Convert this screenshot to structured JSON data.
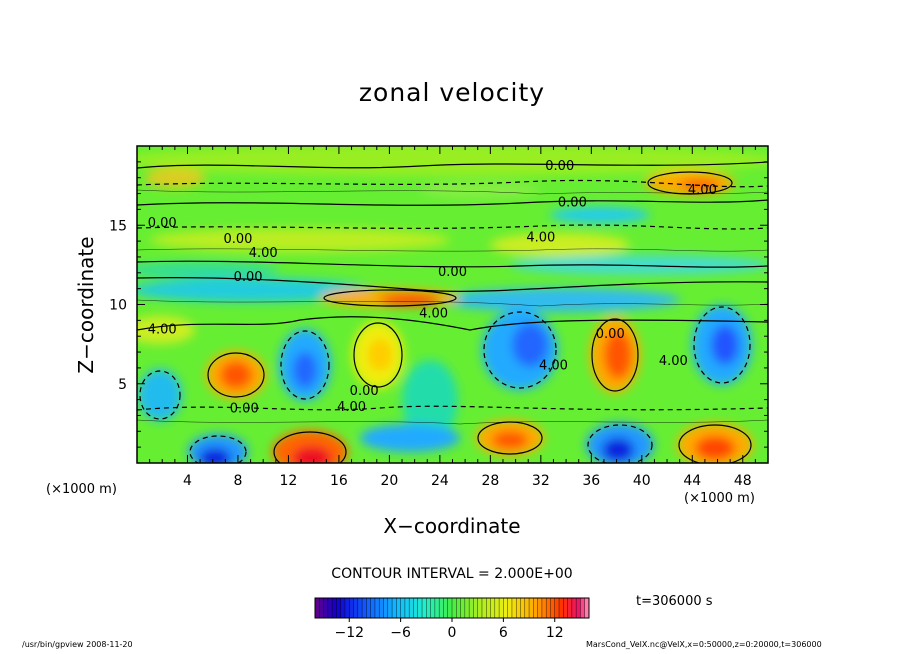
{
  "chart_data": {
    "type": "heatmap",
    "title": "zonal velocity",
    "xlabel": "X−coordinate",
    "ylabel": "Z−coordinate",
    "x_unit_label": "(×1000 m)",
    "xlim": [
      0,
      50
    ],
    "ylim": [
      0,
      20
    ],
    "x_ticks": [
      4,
      8,
      12,
      16,
      20,
      24,
      28,
      32,
      36,
      40,
      44,
      48
    ],
    "y_ticks": [
      5,
      10,
      15
    ],
    "contour_interval_label": "CONTOUR INTERVAL = 2.000E+00",
    "contour_labels": [
      {
        "text": "0.00",
        "x": 33.5,
        "y": 18.8
      },
      {
        "text": "0.00",
        "x": 34.5,
        "y": 16.5
      },
      {
        "text": "4.00",
        "x": 44.8,
        "y": 17.3
      },
      {
        "text": "0.00",
        "x": 2.0,
        "y": 15.2
      },
      {
        "text": "0.00",
        "x": 8.0,
        "y": 14.2
      },
      {
        "text": "4.00",
        "x": 10.0,
        "y": 13.3
      },
      {
        "text": "0.00",
        "x": 8.8,
        "y": 11.8
      },
      {
        "text": "4.00",
        "x": 32.0,
        "y": 14.3
      },
      {
        "text": "0.00",
        "x": 25.0,
        "y": 12.1
      },
      {
        "text": "4.00",
        "x": 23.5,
        "y": 9.5
      },
      {
        "text": "4.00",
        "x": 2.0,
        "y": 8.5
      },
      {
        "text": "0.00",
        "x": 37.5,
        "y": 8.2
      },
      {
        "text": "4.00",
        "x": 33.0,
        "y": 6.2
      },
      {
        "text": "4.00",
        "x": 42.5,
        "y": 6.5
      },
      {
        "text": "0.00",
        "x": 18.0,
        "y": 4.6
      },
      {
        "text": "4.00",
        "x": 17.0,
        "y": 3.6
      },
      {
        "text": "0.00",
        "x": 8.5,
        "y": 3.5
      }
    ],
    "colorbar": {
      "range": [
        -16,
        16
      ],
      "tick_labels": [
        "−12",
        "−6",
        "0",
        "6",
        "12"
      ],
      "tick_values": [
        -12,
        -6,
        0,
        6,
        12
      ]
    },
    "time_label": "t=306000 s",
    "grid": false,
    "colormap": "rainbow (purple-blue-cyan-green-yellow-orange-red-pink)"
  },
  "footer": {
    "left": "/usr/bin/gpview   2008-11-20",
    "right": "MarsCond_VelX.nc@VelX,x=0:50000,z=0:20000,t=306000"
  }
}
